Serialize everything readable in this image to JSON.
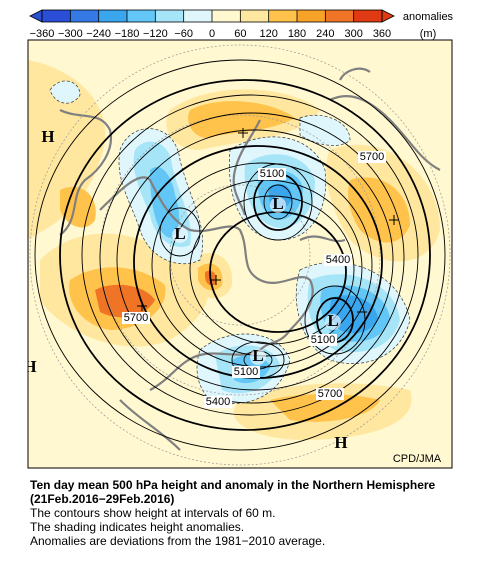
{
  "colorbar": {
    "ticks": [
      {
        "value": -360,
        "label": "−360"
      },
      {
        "value": -300,
        "label": "−300"
      },
      {
        "value": -240,
        "label": "−240"
      },
      {
        "value": -180,
        "label": "−180"
      },
      {
        "value": -120,
        "label": "−120"
      },
      {
        "value": -60,
        "label": "−60"
      },
      0,
      60,
      120,
      180,
      240,
      300,
      360
    ],
    "colors": [
      "#2a4fd6",
      "#3479e6",
      "#3aa6ee",
      "#62c6f6",
      "#a6e4f8",
      "#def6fc",
      "#fff8d0",
      "#ffe7a0",
      "#ffc24a",
      "#f9a22a",
      "#f07426",
      "#e03a14"
    ],
    "title": "anomalies",
    "unit": "(m)"
  },
  "map": {
    "highs": [
      "H",
      "H",
      "H"
    ],
    "lows": [
      "L",
      "L",
      "L",
      "L"
    ],
    "contour_labels": [
      "5100",
      "5100",
      "5100",
      "5700",
      "5700",
      "5700",
      "5400",
      "5400"
    ],
    "credit": "CPD/JMA"
  },
  "caption": {
    "title": "Ten day mean 500 hPa height and anomaly in the Northern Hemisphere (21Feb.2016−29Feb.2016)",
    "lines": [
      "The contours show height at intervals of 60 m.",
      "The shading indicates height anomalies.",
      "Anomalies are deviations from the 1981−2010 average."
    ]
  }
}
